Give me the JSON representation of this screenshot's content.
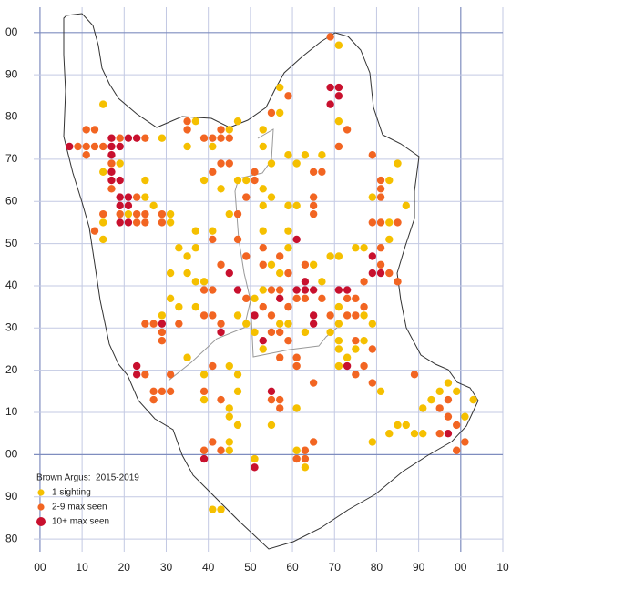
{
  "chart_data": {
    "type": "scatter",
    "legend_title": "Brown Argus:  2015-2019",
    "xlim": [
      -1.5,
      110
    ],
    "ylim": [
      77,
      206
    ],
    "xticks": [
      {
        "value": 0,
        "label": "00"
      },
      10,
      20,
      30,
      40,
      50,
      60,
      70,
      80,
      90,
      {
        "value": 100,
        "label": "00"
      },
      {
        "value": 110,
        "label": "10"
      }
    ],
    "yticks": [
      {
        "value": 200,
        "label": "00"
      },
      {
        "value": 190,
        "label": "90"
      },
      {
        "value": 180,
        "label": "80"
      },
      {
        "value": 170,
        "label": "70"
      },
      {
        "value": 160,
        "label": "60"
      },
      {
        "value": 150,
        "label": "50"
      },
      {
        "value": 140,
        "label": "40"
      },
      {
        "value": 130,
        "label": "30"
      },
      {
        "value": 120,
        "label": "20"
      },
      {
        "value": 110,
        "label": "10"
      },
      {
        "value": 100,
        "label": "00"
      },
      90,
      80
    ],
    "grid": true,
    "legend": "lower left",
    "series": [
      {
        "name": "1 sighting",
        "color": "#f5c000",
        "x": [
          15,
          15,
          15,
          15,
          19,
          21,
          25,
          27,
          25,
          31,
          31,
          29,
          35,
          37,
          41,
          45,
          47,
          39,
          47,
          49,
          43,
          53,
          53,
          55,
          53,
          45,
          41,
          37,
          35,
          35,
          37,
          39,
          37,
          33,
          31,
          31,
          33,
          37,
          29,
          35,
          39,
          39,
          45,
          47,
          47,
          45,
          45,
          47,
          45,
          45,
          41,
          43,
          55,
          61,
          61,
          63,
          51,
          53,
          55,
          59,
          53,
          55,
          57,
          59,
          59,
          51,
          49,
          51,
          53,
          53,
          57,
          59,
          65,
          63,
          69,
          71,
          69,
          71,
          75,
          77,
          67,
          71,
          77,
          79,
          77,
          75,
          73,
          71,
          71,
          71,
          79,
          81,
          83,
          85,
          87,
          89,
          91,
          91,
          93,
          95,
          97,
          99,
          101,
          103,
          61,
          61,
          59,
          63,
          67,
          71,
          71,
          57,
          57,
          79,
          85,
          83,
          87,
          83,
          83,
          47
        ],
        "values": [
          183,
          167,
          155,
          151,
          169,
          157,
          161,
          159,
          165,
          157,
          155,
          175,
          173,
          179,
          173,
          177,
          179,
          165,
          165,
          165,
          163,
          173,
          177,
          169,
          163,
          157,
          153,
          149,
          147,
          143,
          141,
          141,
          153,
          149,
          143,
          137,
          135,
          135,
          133,
          123,
          119,
          113,
          121,
          119,
          115,
          111,
          109,
          107,
          103,
          101,
          87,
          87,
          107,
          111,
          101,
          97,
          99,
          159,
          161,
          159,
          153,
          145,
          143,
          153,
          149,
          137,
          131,
          129,
          125,
          139,
          131,
          131,
          145,
          129,
          129,
          131,
          147,
          147,
          149,
          149,
          141,
          135,
          133,
          131,
          127,
          125,
          123,
          121,
          125,
          127,
          103,
          115,
          105,
          107,
          107,
          105,
          105,
          111,
          113,
          115,
          117,
          115,
          109,
          113,
          159,
          169,
          171,
          171,
          171,
          179,
          197,
          187,
          181,
          161,
          169,
          165,
          159,
          155,
          151,
          133
        ]
      },
      {
        "name": "2-9 max seen",
        "color": "#f26522",
        "x": [
          9,
          11,
          13,
          15,
          11,
          13,
          11,
          19,
          25,
          17,
          17,
          23,
          19,
          23,
          25,
          25,
          23,
          29,
          29,
          13,
          15,
          27,
          29,
          29,
          25,
          27,
          29,
          31,
          31,
          27,
          41,
          39,
          43,
          41,
          43,
          39,
          55,
          57,
          57,
          63,
          65,
          61,
          63,
          73,
          71,
          65,
          67,
          65,
          65,
          65,
          79,
          81,
          81,
          81,
          79,
          81,
          85,
          81,
          81,
          83,
          85,
          77,
          73,
          75,
          61,
          63,
          67,
          59,
          55,
          53,
          49,
          55,
          57,
          55,
          57,
          53,
          53,
          57,
          49,
          43,
          41,
          47,
          49,
          51,
          51,
          41,
          43,
          45,
          45,
          43,
          41,
          39,
          43,
          35,
          35,
          41,
          39,
          43,
          33,
          25,
          39,
          41,
          59,
          57,
          65,
          61,
          69,
          73,
          75,
          75,
          79,
          77,
          75,
          79,
          89,
          95,
          95,
          97,
          99,
          101,
          99,
          97,
          63,
          59,
          55,
          59,
          69,
          77,
          61,
          47
        ],
        "values": [
          173,
          173,
          173,
          173,
          171,
          177,
          177,
          175,
          175,
          169,
          163,
          161,
          157,
          157,
          157,
          155,
          155,
          157,
          155,
          153,
          157,
          131,
          129,
          127,
          119,
          115,
          115,
          115,
          119,
          113,
          121,
          115,
          113,
          103,
          101,
          101,
          113,
          113,
          111,
          101,
          103,
          99,
          99,
          177,
          173,
          167,
          167,
          161,
          159,
          157,
          171,
          165,
          163,
          161,
          155,
          155,
          155,
          149,
          145,
          143,
          141,
          141,
          137,
          137,
          137,
          137,
          137,
          135,
          133,
          135,
          137,
          129,
          129,
          139,
          139,
          145,
          149,
          147,
          147,
          145,
          151,
          157,
          161,
          167,
          165,
          167,
          169,
          169,
          175,
          175,
          175,
          175,
          177,
          179,
          177,
          133,
          133,
          131,
          131,
          131,
          139,
          139,
          127,
          123,
          117,
          121,
          133,
          133,
          133,
          127,
          125,
          121,
          119,
          117,
          119,
          111,
          105,
          109,
          107,
          103,
          101,
          113,
          145,
          143,
          181,
          185,
          199,
          135,
          123,
          151
        ]
      },
      {
        "name": "10+ max seen",
        "color": "#c8102e",
        "x": [
          7,
          17,
          17,
          17,
          17,
          17,
          19,
          19,
          21,
          23,
          19,
          21,
          19,
          21,
          19,
          21,
          29,
          23,
          23,
          39,
          45,
          47,
          43,
          51,
          53,
          55,
          57,
          61,
          61,
          63,
          63,
          65,
          65,
          65,
          69,
          71,
          71,
          69,
          71,
          73,
          73,
          79,
          79,
          81,
          97,
          51
        ],
        "values": [
          173,
          175,
          173,
          171,
          167,
          165,
          165,
          173,
          175,
          175,
          161,
          161,
          159,
          159,
          155,
          155,
          131,
          121,
          119,
          99,
          143,
          139,
          129,
          133,
          127,
          115,
          137,
          151,
          139,
          141,
          139,
          139,
          133,
          131,
          187,
          187,
          185,
          183,
          139,
          139,
          121,
          147,
          143,
          143,
          105,
          97
        ]
      }
    ]
  }
}
